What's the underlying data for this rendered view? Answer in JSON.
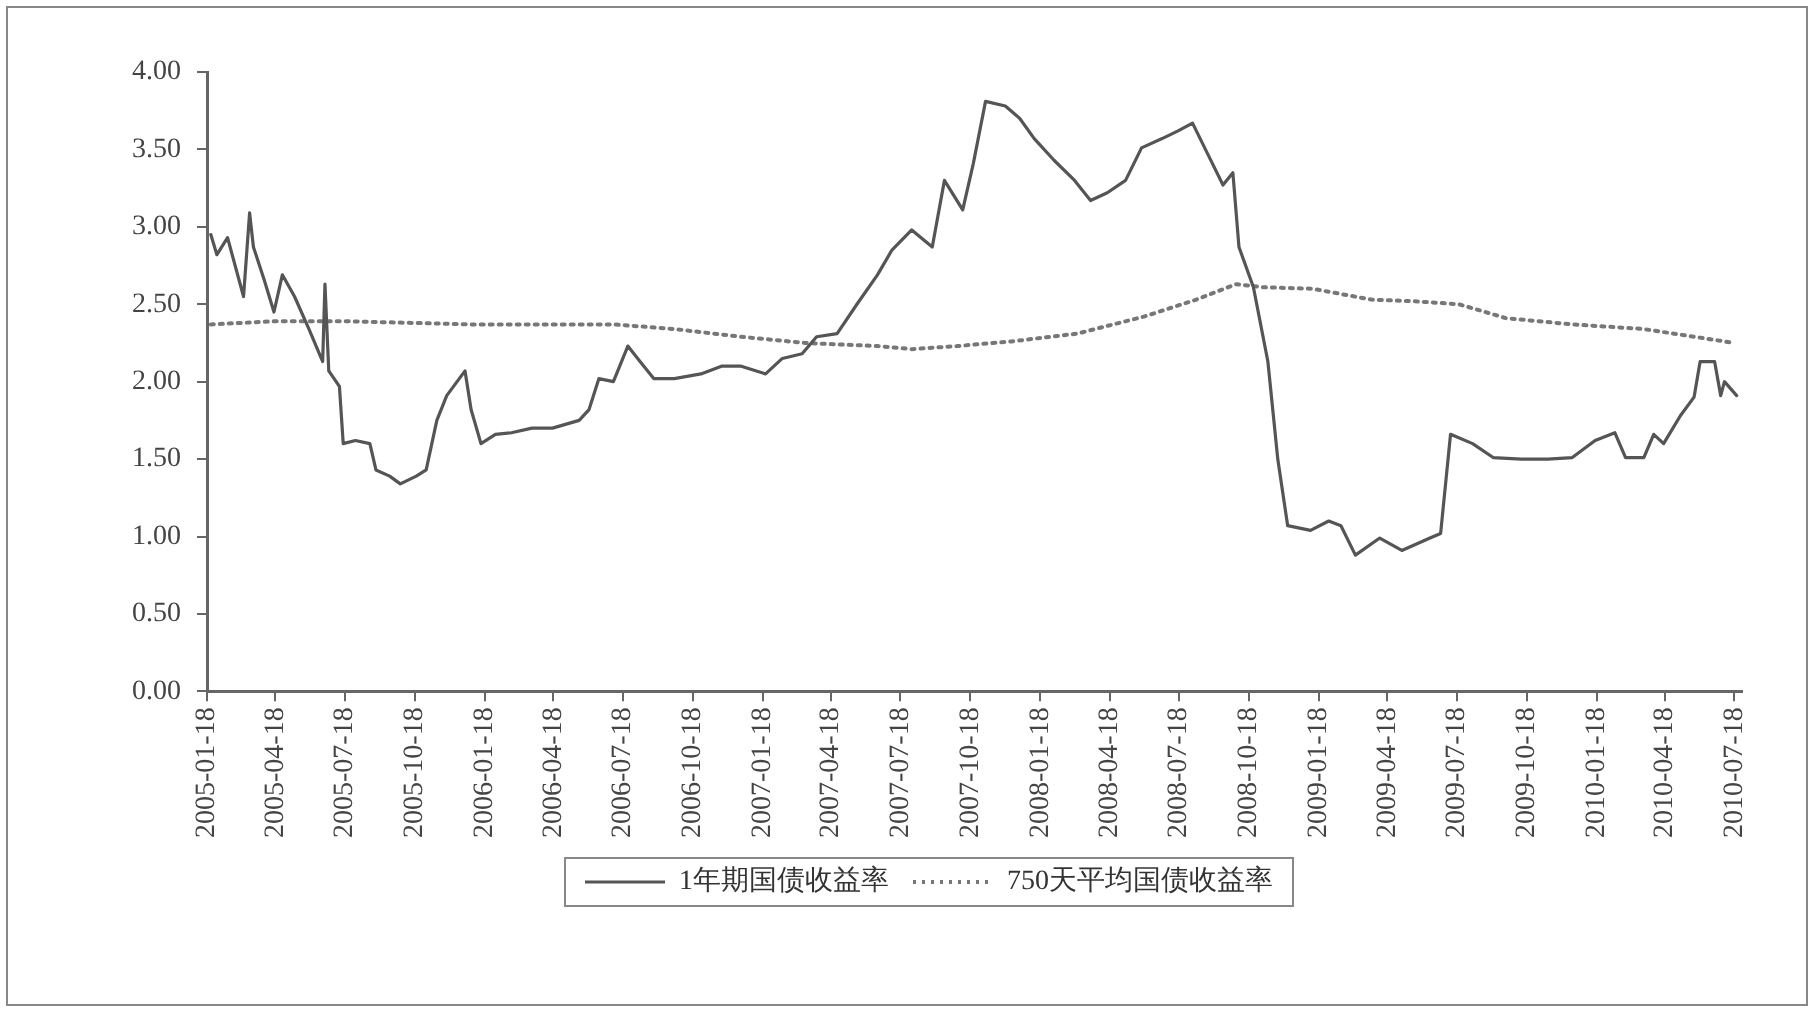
{
  "chart_data": {
    "type": "line",
    "xlim": [
      "2005-01-18",
      "2010-07-28"
    ],
    "xticks": [
      "2005-01-18",
      "2005-04-18",
      "2005-07-18",
      "2005-10-18",
      "2006-01-18",
      "2006-04-18",
      "2006-07-18",
      "2006-10-18",
      "2007-01-18",
      "2007-04-18",
      "2007-07-18",
      "2007-10-18",
      "2008-01-18",
      "2008-04-18",
      "2008-07-18",
      "2008-10-18",
      "2009-01-18",
      "2009-04-18",
      "2009-07-18",
      "2009-10-18",
      "2010-01-18",
      "2010-04-18",
      "2010-07-18"
    ],
    "ylim": [
      0,
      4
    ],
    "yticks": [
      {
        "value": 0,
        "label": "0.00"
      },
      {
        "value": 0.5,
        "label": "0.50"
      },
      {
        "value": 1,
        "label": "1.00"
      },
      {
        "value": 1.5,
        "label": "1.50"
      },
      {
        "value": 2,
        "label": "2.00"
      },
      {
        "value": 2.5,
        "label": "2.50"
      },
      {
        "value": 3,
        "label": "3.00"
      },
      {
        "value": 3.5,
        "label": "3.50"
      },
      {
        "value": 4,
        "label": "4.00"
      }
    ],
    "grid": false,
    "legend": "bottom",
    "marker": "none",
    "series": [
      {
        "name": "1年期国债收益率",
        "color": "#555555",
        "line_style": "solid",
        "x": [
          "2005-01-23",
          "2005-01-31",
          "2005-02-14",
          "2005-03-07",
          "2005-03-15",
          "2005-03-20",
          "2005-04-03",
          "2005-04-16",
          "2005-04-27",
          "2005-05-13",
          "2005-06-01",
          "2005-06-19",
          "2005-06-22",
          "2005-06-27",
          "2005-07-11",
          "2005-07-16",
          "2005-08-01",
          "2005-08-20",
          "2005-08-28",
          "2005-09-15",
          "2005-09-29",
          "2005-10-20",
          "2005-11-02",
          "2005-11-16",
          "2005-11-29",
          "2005-12-23",
          "2005-12-31",
          "2006-01-13",
          "2006-02-01",
          "2006-02-22",
          "2006-03-21",
          "2006-04-17",
          "2006-05-22",
          "2006-06-04",
          "2006-06-17",
          "2006-07-06",
          "2006-07-25",
          "2006-08-10",
          "2006-08-28",
          "2006-09-24",
          "2006-10-29",
          "2006-11-25",
          "2006-12-21",
          "2007-01-22",
          "2007-02-13",
          "2007-03-11",
          "2007-03-30",
          "2007-04-26",
          "2007-05-22",
          "2007-06-18",
          "2007-07-07",
          "2007-08-02",
          "2007-08-29",
          "2007-09-14",
          "2007-10-08",
          "2007-10-22",
          "2007-11-07",
          "2007-12-03",
          "2007-12-22",
          "2008-01-10",
          "2008-02-05",
          "2008-03-03",
          "2008-03-24",
          "2008-04-15",
          "2008-05-09",
          "2008-05-30",
          "2008-06-26",
          "2008-07-17",
          "2008-08-05",
          "2008-08-26",
          "2008-09-14",
          "2008-09-27",
          "2008-10-05",
          "2008-10-24",
          "2008-11-12",
          "2008-11-25",
          "2008-12-08",
          "2009-01-07",
          "2009-01-31",
          "2009-02-16",
          "2009-03-07",
          "2009-04-08",
          "2009-05-07",
          "2009-06-13",
          "2009-06-27",
          "2009-07-10",
          "2009-08-08",
          "2009-09-04",
          "2009-10-11",
          "2009-11-15",
          "2009-12-17",
          "2010-01-16",
          "2010-02-11",
          "2010-02-25",
          "2010-03-21",
          "2010-04-03",
          "2010-04-16",
          "2010-05-08",
          "2010-05-26",
          "2010-06-03",
          "2010-06-22",
          "2010-06-30",
          "2010-07-05",
          "2010-07-21"
        ],
        "values": [
          2.95,
          2.82,
          2.93,
          2.55,
          3.09,
          2.87,
          2.66,
          2.45,
          2.69,
          2.55,
          2.34,
          2.13,
          2.63,
          2.07,
          1.97,
          1.6,
          1.62,
          1.6,
          1.43,
          1.39,
          1.34,
          1.39,
          1.43,
          1.75,
          1.91,
          2.07,
          1.82,
          1.6,
          1.66,
          1.67,
          1.7,
          1.7,
          1.75,
          1.82,
          2.02,
          2.0,
          2.23,
          2.13,
          2.02,
          2.02,
          2.05,
          2.1,
          2.1,
          2.05,
          2.15,
          2.18,
          2.29,
          2.31,
          2.5,
          2.69,
          2.85,
          2.98,
          2.87,
          3.3,
          3.11,
          3.41,
          3.81,
          3.78,
          3.7,
          3.57,
          3.43,
          3.3,
          3.17,
          3.22,
          3.3,
          3.51,
          3.57,
          3.62,
          3.67,
          3.46,
          3.27,
          3.35,
          2.87,
          2.61,
          2.13,
          1.5,
          1.07,
          1.04,
          1.1,
          1.07,
          0.88,
          0.99,
          0.91,
          0.99,
          1.02,
          1.66,
          1.6,
          1.51,
          1.5,
          1.5,
          1.51,
          1.62,
          1.67,
          1.51,
          1.51,
          1.66,
          1.6,
          1.78,
          1.9,
          2.13,
          2.13,
          1.91,
          2.0,
          1.91
        ]
      },
      {
        "name": "750天平均国债收益率",
        "color": "#777777",
        "line_style": "dotted",
        "x": [
          "2005-01-23",
          "2005-04-16",
          "2005-07-23",
          "2005-12-31",
          "2006-07-06",
          "2006-09-24",
          "2006-12-21",
          "2007-03-15",
          "2007-06-18",
          "2007-08-02",
          "2007-10-01",
          "2007-12-11",
          "2008-03-06",
          "2008-06-02",
          "2008-08-10",
          "2008-10-01",
          "2008-11-05",
          "2009-01-10",
          "2009-03-28",
          "2009-05-21",
          "2009-07-21",
          "2009-09-21",
          "2009-12-17",
          "2010-03-21",
          "2010-05-26",
          "2010-07-18"
        ],
        "values": [
          2.37,
          2.39,
          2.39,
          2.37,
          2.37,
          2.34,
          2.29,
          2.25,
          2.23,
          2.21,
          2.23,
          2.26,
          2.31,
          2.42,
          2.53,
          2.63,
          2.61,
          2.6,
          2.53,
          2.52,
          2.5,
          2.41,
          2.37,
          2.34,
          2.29,
          2.25
        ]
      }
    ]
  }
}
